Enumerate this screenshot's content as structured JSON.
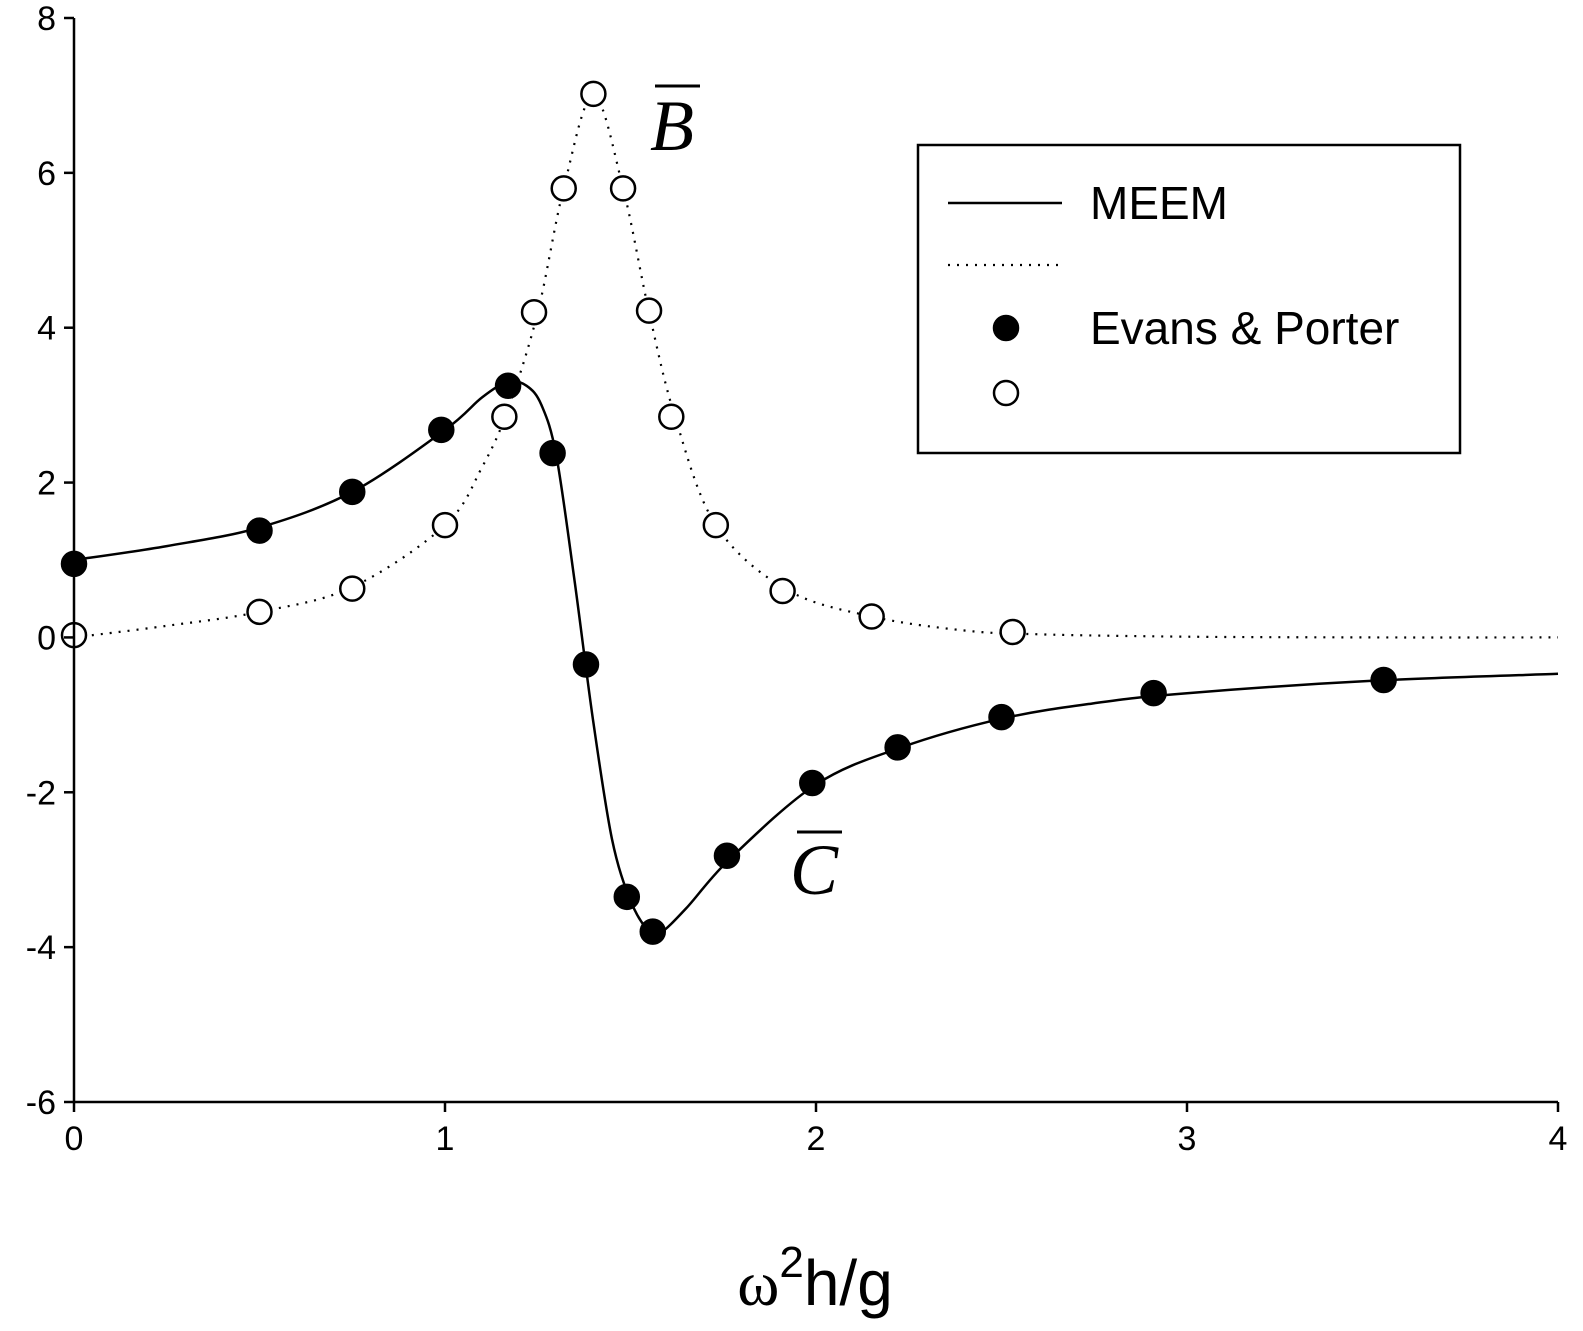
{
  "chart_data": {
    "type": "scatter",
    "title": "",
    "xlabel_base": "ω",
    "xlabel_sup": "2",
    "xlabel_rest": "h/g",
    "ylabel": "",
    "xlim": [
      0,
      4
    ],
    "ylim": [
      -6,
      8
    ],
    "x_ticks": [
      0,
      1,
      2,
      3,
      4
    ],
    "y_ticks": [
      8,
      6,
      4,
      2,
      0,
      -2,
      -4,
      -6
    ],
    "x_tick_labels": [
      "0",
      "1",
      "2",
      "3",
      "4"
    ],
    "y_tick_labels": [
      "8",
      "6",
      "4",
      "2",
      "0",
      "-2",
      "-4",
      "-6"
    ],
    "grid": false,
    "legend": {
      "position": "top-right",
      "entries": [
        {
          "label": "MEEM",
          "kind": "solid-line"
        },
        {
          "label": "",
          "kind": "dotted-line"
        },
        {
          "label": "Evans & Porter",
          "kind": "filled-marker"
        },
        {
          "label": "",
          "kind": "open-marker"
        }
      ]
    },
    "curve_labels": {
      "B": "B",
      "C": "C"
    },
    "series": [
      {
        "name": "C MEEM",
        "style": "solid",
        "x": [
          0,
          0.25,
          0.5,
          0.75,
          1.0,
          1.1,
          1.17,
          1.22,
          1.26,
          1.3,
          1.35,
          1.4,
          1.45,
          1.5,
          1.55,
          1.58,
          1.65,
          1.77,
          2.0,
          2.23,
          2.5,
          2.75,
          3.0,
          3.5,
          4.0
        ],
        "y": [
          1.0,
          1.18,
          1.42,
          1.88,
          2.68,
          3.1,
          3.3,
          3.25,
          3.0,
          2.35,
          0.7,
          -1.1,
          -2.6,
          -3.4,
          -3.8,
          -3.82,
          -3.5,
          -2.85,
          -1.9,
          -1.42,
          -1.05,
          -0.85,
          -0.72,
          -0.56,
          -0.47
        ]
      },
      {
        "name": "B MEEM",
        "style": "dotted",
        "x": [
          0,
          0.25,
          0.5,
          0.75,
          1.0,
          1.1,
          1.17,
          1.25,
          1.32,
          1.4,
          1.48,
          1.55,
          1.62,
          1.73,
          1.92,
          2.15,
          2.4,
          2.6,
          3.0,
          3.5,
          4.0
        ],
        "y": [
          0.0,
          0.15,
          0.33,
          0.65,
          1.45,
          2.2,
          2.95,
          4.2,
          5.8,
          7.0,
          5.8,
          4.2,
          2.85,
          1.45,
          0.62,
          0.27,
          0.09,
          0.04,
          0.01,
          0.0,
          0.0
        ]
      },
      {
        "name": "C Evans & Porter",
        "style": "filled-marker",
        "x": [
          0.0,
          0.5,
          0.75,
          0.99,
          1.17,
          1.29,
          1.38,
          1.49,
          1.56,
          1.76,
          1.99,
          2.22,
          2.5,
          2.91,
          3.53
        ],
        "y": [
          0.95,
          1.38,
          1.88,
          2.68,
          3.25,
          2.38,
          -0.35,
          -3.35,
          -3.8,
          -2.82,
          -1.88,
          -1.42,
          -1.03,
          -0.72,
          -0.55
        ]
      },
      {
        "name": "B Evans & Porter",
        "style": "open-marker",
        "x": [
          0.0,
          0.5,
          0.75,
          1.0,
          1.16,
          1.24,
          1.32,
          1.4,
          1.48,
          1.55,
          1.61,
          1.73,
          1.91,
          2.15,
          2.53
        ],
        "y": [
          0.03,
          0.33,
          0.63,
          1.45,
          2.85,
          4.2,
          5.8,
          7.02,
          5.8,
          4.22,
          2.85,
          1.45,
          0.6,
          0.27,
          0.07
        ]
      }
    ]
  }
}
